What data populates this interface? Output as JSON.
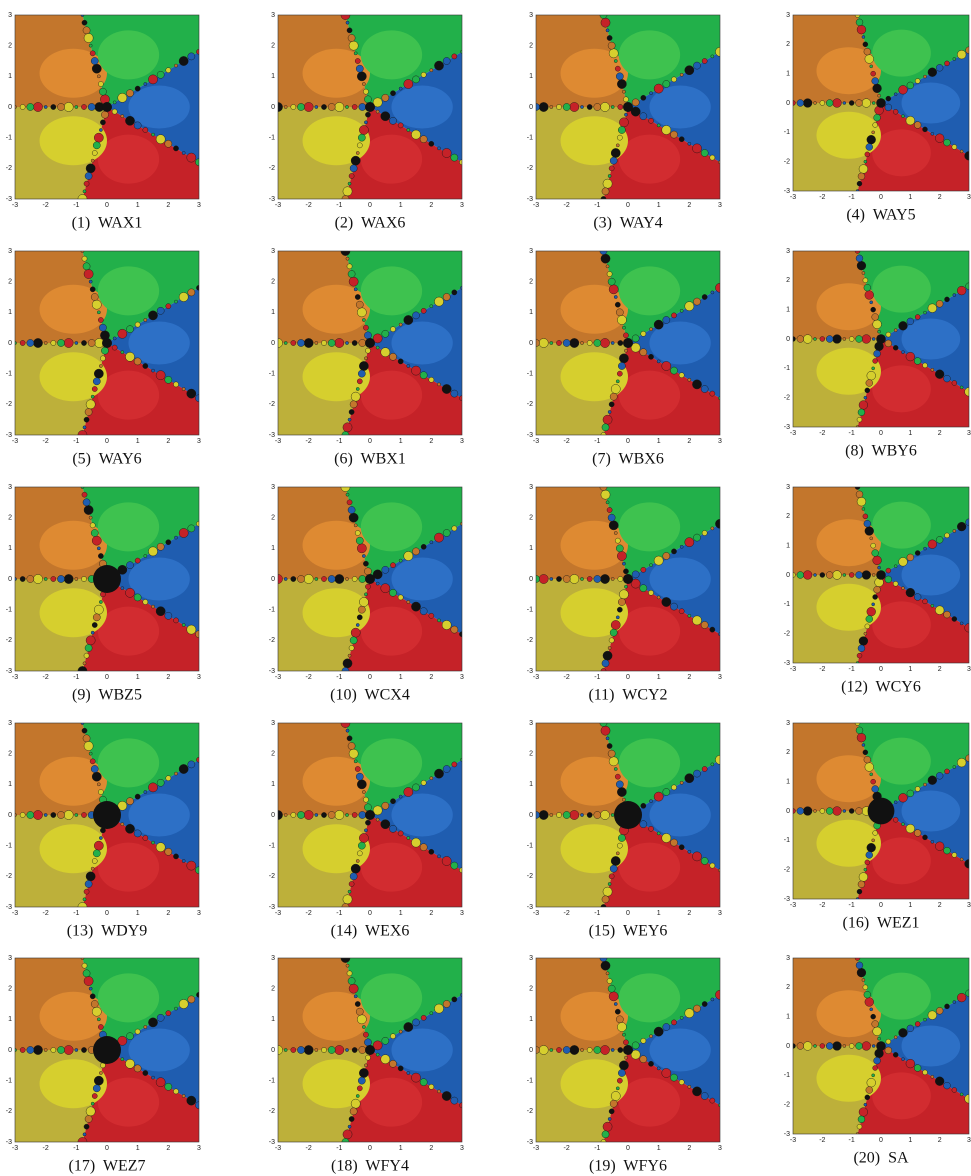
{
  "axis_ticks": [
    -3,
    -2,
    -1,
    0,
    1,
    2,
    3
  ],
  "panels": [
    {
      "caption": "(1)  WAX1"
    },
    {
      "caption": "(2)  WAX6"
    },
    {
      "caption": "(3)  WAY4"
    },
    {
      "caption": "(4)  WAY5"
    },
    {
      "caption": "(5)  WAY6"
    },
    {
      "caption": "(6)  WBX1"
    },
    {
      "caption": "(7)  WBX6"
    },
    {
      "caption": "(8)  WBY6"
    },
    {
      "caption": "(9)  WBZ5"
    },
    {
      "caption": "(10)  WCX4"
    },
    {
      "caption": "(11)  WCY2"
    },
    {
      "caption": "(12)  WCY6"
    },
    {
      "caption": "(13)  WDY9"
    },
    {
      "caption": "(14)  WEX6"
    },
    {
      "caption": "(15)  WEY6"
    },
    {
      "caption": "(16)  WEZ1"
    },
    {
      "caption": "(17)  WEZ7"
    },
    {
      "caption": "(18)  WFY4"
    },
    {
      "caption": "(19)  WFY6"
    },
    {
      "caption": "(20)  SA"
    }
  ]
}
